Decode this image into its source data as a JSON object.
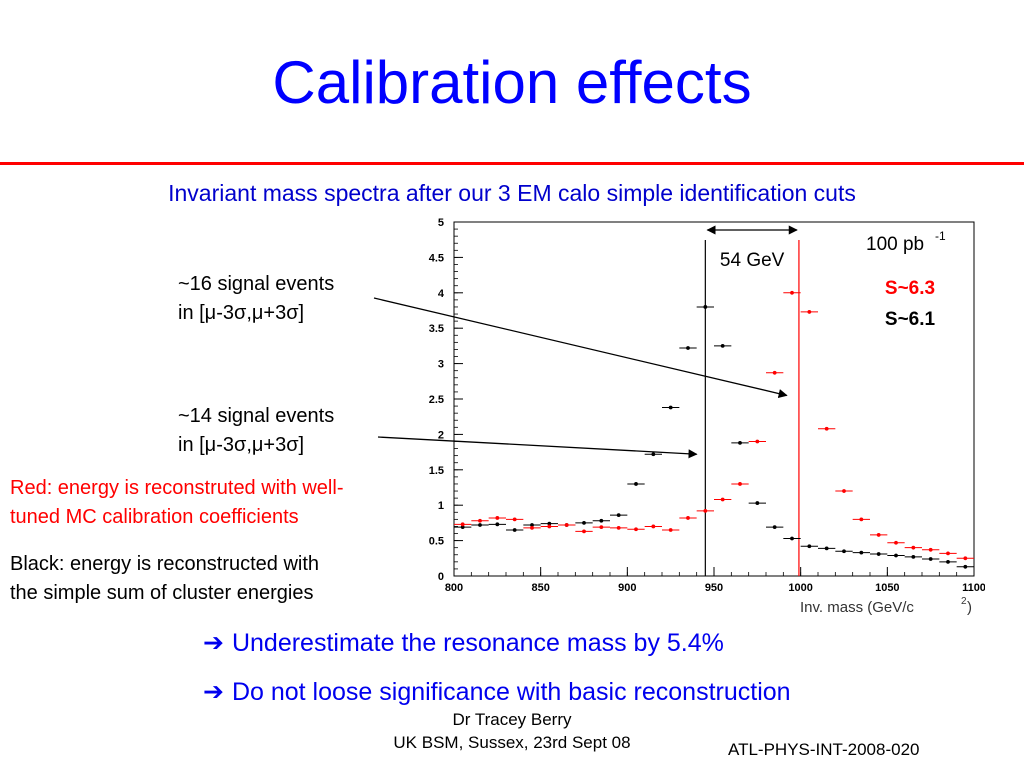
{
  "slide": {
    "title": "Calibration effects",
    "subtitle": "Invariant mass spectra after our 3 EM calo simple identification cuts",
    "notes": {
      "signal16_line1": "~16 signal events",
      "signal16_line2": "in [μ-3σ,μ+3σ]",
      "signal14_line1": "~14 signal events",
      "signal14_line2": "in [μ-3σ,μ+3σ]",
      "red_line1": "Red: energy is reconstruted with well-",
      "red_line2": "tuned MC calibration coefficients",
      "black_line1": "Black: energy is reconstructed with",
      "black_line2": "the simple sum of cluster energies"
    },
    "bullets": [
      "Underestimate the resonance mass by 5.4%",
      "Do not loose significance with basic reconstruction"
    ],
    "footer": {
      "author": "Dr Tracey Berry",
      "venue": "UK BSM, Sussex, 23rd Sept 08",
      "reference": "ATL-PHYS-INT-2008-020"
    }
  },
  "colors": {
    "title": "#0000ff",
    "rule": "#ff0000",
    "red_series": "#ff0000",
    "black_series": "#000000"
  },
  "icons": {
    "bullet": "right-arrow-icon"
  },
  "chart_data": {
    "type": "scatter",
    "x_unit_label": "Inv. mass (GeV/c",
    "x_unit_sup": "2",
    "x_unit_close": ")",
    "xlim": [
      800,
      1100
    ],
    "ylim": [
      0,
      5
    ],
    "x_ticks": [
      800,
      850,
      900,
      950,
      1000,
      1050,
      1100
    ],
    "y_ticks": [
      0,
      0.5,
      1,
      1.5,
      2,
      2.5,
      3,
      3.5,
      4,
      4.5,
      5
    ],
    "bin_width": 10,
    "luminosity_label": "100 pb",
    "luminosity_sup": "-1",
    "width_annotation": "54 GeV",
    "width_range": [
      945,
      999
    ],
    "mass_lines": {
      "black": 945,
      "red": 999
    },
    "significance": [
      {
        "label": "S~6.3",
        "color": "#ff0000"
      },
      {
        "label": "S~6.1",
        "color": "#000000"
      }
    ],
    "series": [
      {
        "color": "#000000",
        "x": [
          805,
          815,
          825,
          835,
          845,
          855,
          865,
          875,
          885,
          895,
          905,
          915,
          925,
          935,
          945,
          955,
          965,
          975,
          985,
          995,
          1005,
          1015,
          1025,
          1035,
          1045,
          1055,
          1065,
          1075,
          1085,
          1095
        ],
        "y": [
          0.69,
          0.72,
          0.73,
          0.65,
          0.72,
          0.74,
          0.72,
          0.75,
          0.78,
          0.86,
          1.3,
          1.72,
          2.38,
          3.22,
          3.8,
          3.25,
          1.88,
          1.03,
          0.69,
          0.53,
          0.42,
          0.39,
          0.35,
          0.33,
          0.31,
          0.29,
          0.27,
          0.24,
          0.2,
          0.13
        ]
      },
      {
        "color": "#ff0000",
        "x": [
          805,
          815,
          825,
          835,
          845,
          855,
          865,
          875,
          885,
          895,
          905,
          915,
          925,
          935,
          945,
          955,
          965,
          975,
          985,
          995,
          1005,
          1015,
          1025,
          1035,
          1045,
          1055,
          1065,
          1075,
          1085,
          1095
        ],
        "y": [
          0.73,
          0.78,
          0.82,
          0.8,
          0.68,
          0.7,
          0.72,
          0.63,
          0.69,
          0.68,
          0.66,
          0.7,
          0.65,
          0.82,
          0.92,
          1.08,
          1.3,
          1.9,
          2.87,
          4.0,
          3.73,
          2.08,
          1.2,
          0.8,
          0.58,
          0.47,
          0.4,
          0.37,
          0.32,
          0.25
        ]
      }
    ],
    "annotation_arrows": [
      {
        "from_note": "signal16",
        "to": [
          992,
          2.55
        ]
      },
      {
        "from_note": "signal14",
        "to": [
          940,
          1.72
        ]
      }
    ]
  }
}
